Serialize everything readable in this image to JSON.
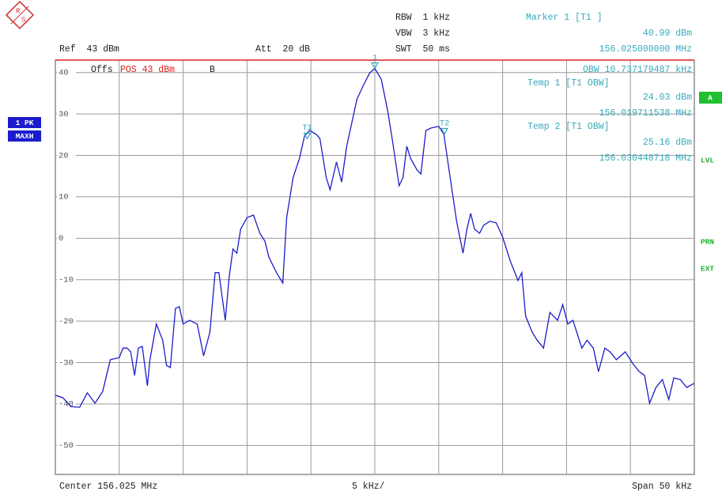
{
  "logo": [
    "R",
    "S"
  ],
  "header": {
    "rbw": "RBW  1 kHz",
    "vbw": "VBW  3 kHz",
    "swt": "SWT  50 ms",
    "ref": "Ref  43 dBm",
    "att": "Att  20 dB"
  },
  "marker_panel": [
    "Marker 1 [T1 ]",
    "40.99 dBm",
    "156.025000000 MHz",
    "OBW 10.737179487 kHz",
    "Temp 1 [T1 OBW]",
    "24.03 dBm",
    "156.019711538 MHz",
    "Temp 2 [T1 OBW]",
    "25.16 dBm",
    "156.030448718 MHz"
  ],
  "offset_label": {
    "prefix": "Offs",
    "limit": "POS 43 dBm",
    "suffix": "B"
  },
  "left_indicators": [
    "1 PK",
    "MAXH"
  ],
  "right_indicators": {
    "box": "A",
    "labels": [
      "LVL",
      "PRN",
      "EXT"
    ]
  },
  "footer": {
    "center": "Center 156.025 MHz",
    "div": "5 kHz/",
    "span": "Span 50 kHz"
  },
  "chart_data": {
    "type": "line",
    "xlim": [
      156.0,
      156.05
    ],
    "ylim": [
      -57,
      43
    ],
    "yticks": [
      40,
      30,
      20,
      10,
      0,
      -10,
      -20,
      -30,
      -40,
      -50
    ],
    "x_divisions": 10,
    "grid": true,
    "limit_line": {
      "value": 43,
      "color": "#e02020"
    },
    "x": [
      156.0,
      156.0006,
      156.0012,
      156.0019,
      156.0025,
      156.0031,
      156.0037,
      156.0043,
      156.005,
      156.0053,
      156.0056,
      156.0059,
      156.0062,
      156.0065,
      156.0068,
      156.0072,
      156.0074,
      156.0079,
      156.0084,
      156.0087,
      156.009,
      156.0094,
      156.0097,
      156.01,
      156.0105,
      156.0111,
      156.0116,
      156.0121,
      156.0125,
      156.0128,
      156.0133,
      156.0136,
      156.0139,
      156.0142,
      156.0145,
      156.015,
      156.0155,
      156.016,
      156.0164,
      156.0167,
      156.0173,
      156.0178,
      156.0181,
      156.0186,
      156.0191,
      156.0195,
      156.0199,
      156.0204,
      156.0207,
      156.0212,
      156.0215,
      156.022,
      156.0224,
      156.0228,
      156.0232,
      156.0236,
      156.0241,
      156.0246,
      156.025,
      156.0255,
      156.026,
      156.0264,
      156.0269,
      156.0272,
      156.0275,
      156.0278,
      156.0283,
      156.0286,
      156.029,
      156.0294,
      156.03,
      156.0304,
      156.0309,
      156.0314,
      156.0319,
      156.0322,
      156.0325,
      156.0328,
      156.0332,
      156.0335,
      156.034,
      156.0345,
      156.035,
      156.0356,
      156.0362,
      156.0365,
      156.0368,
      156.0373,
      156.0377,
      156.0382,
      156.0387,
      156.0393,
      156.0397,
      156.0401,
      156.0405,
      156.0412,
      156.0416,
      156.0421,
      156.0425,
      156.043,
      156.0434,
      156.0439,
      156.0446,
      156.0452,
      156.0457,
      156.0461,
      156.0465,
      156.047,
      156.0475,
      156.048,
      156.0484,
      156.0489,
      156.0494,
      156.05
    ],
    "series": [
      {
        "color": "#1c1ccc",
        "values": [
          -37.9,
          -38.5,
          -40.6,
          -40.8,
          -37.3,
          -39.8,
          -37.0,
          -29.3,
          -28.8,
          -26.5,
          -26.5,
          -27.4,
          -33.1,
          -26.5,
          -26.1,
          -35.6,
          -29.3,
          -20.7,
          -24.6,
          -30.7,
          -31.2,
          -16.9,
          -16.5,
          -20.7,
          -19.8,
          -20.7,
          -28.4,
          -22.6,
          -8.3,
          -8.3,
          -19.8,
          -9.3,
          -2.6,
          -3.6,
          2.2,
          5.0,
          5.6,
          1.2,
          -0.7,
          -4.5,
          -8.3,
          -10.8,
          5.0,
          14.6,
          19.3,
          24.7,
          26.0,
          25.1,
          24.1,
          14.6,
          11.7,
          18.4,
          13.6,
          22.2,
          27.9,
          33.6,
          36.9,
          39.9,
          40.99,
          38.4,
          30.8,
          23.2,
          12.7,
          14.6,
          22.2,
          19.3,
          16.5,
          15.5,
          26.0,
          26.6,
          27.0,
          25.1,
          14.6,
          4.1,
          -3.6,
          2.2,
          6.0,
          2.2,
          1.2,
          3.1,
          4.1,
          3.7,
          0.3,
          -5.5,
          -10.2,
          -8.3,
          -18.8,
          -22.6,
          -24.6,
          -26.5,
          -17.9,
          -19.8,
          -16.0,
          -20.7,
          -19.8,
          -26.5,
          -24.6,
          -26.5,
          -32.2,
          -26.5,
          -27.4,
          -29.3,
          -27.4,
          -30.3,
          -32.2,
          -33.1,
          -39.8,
          -36.0,
          -34.1,
          -38.9,
          -33.7,
          -34.1,
          -36.0,
          -35.0
        ]
      }
    ],
    "markers": [
      {
        "name": "1",
        "x": 156.025,
        "y": 40.99
      },
      {
        "name": "T1",
        "x": 156.019711538,
        "y": 24.03
      },
      {
        "name": "T2",
        "x": 156.030448718,
        "y": 25.16
      }
    ],
    "marker_color": "#30a8b8"
  }
}
